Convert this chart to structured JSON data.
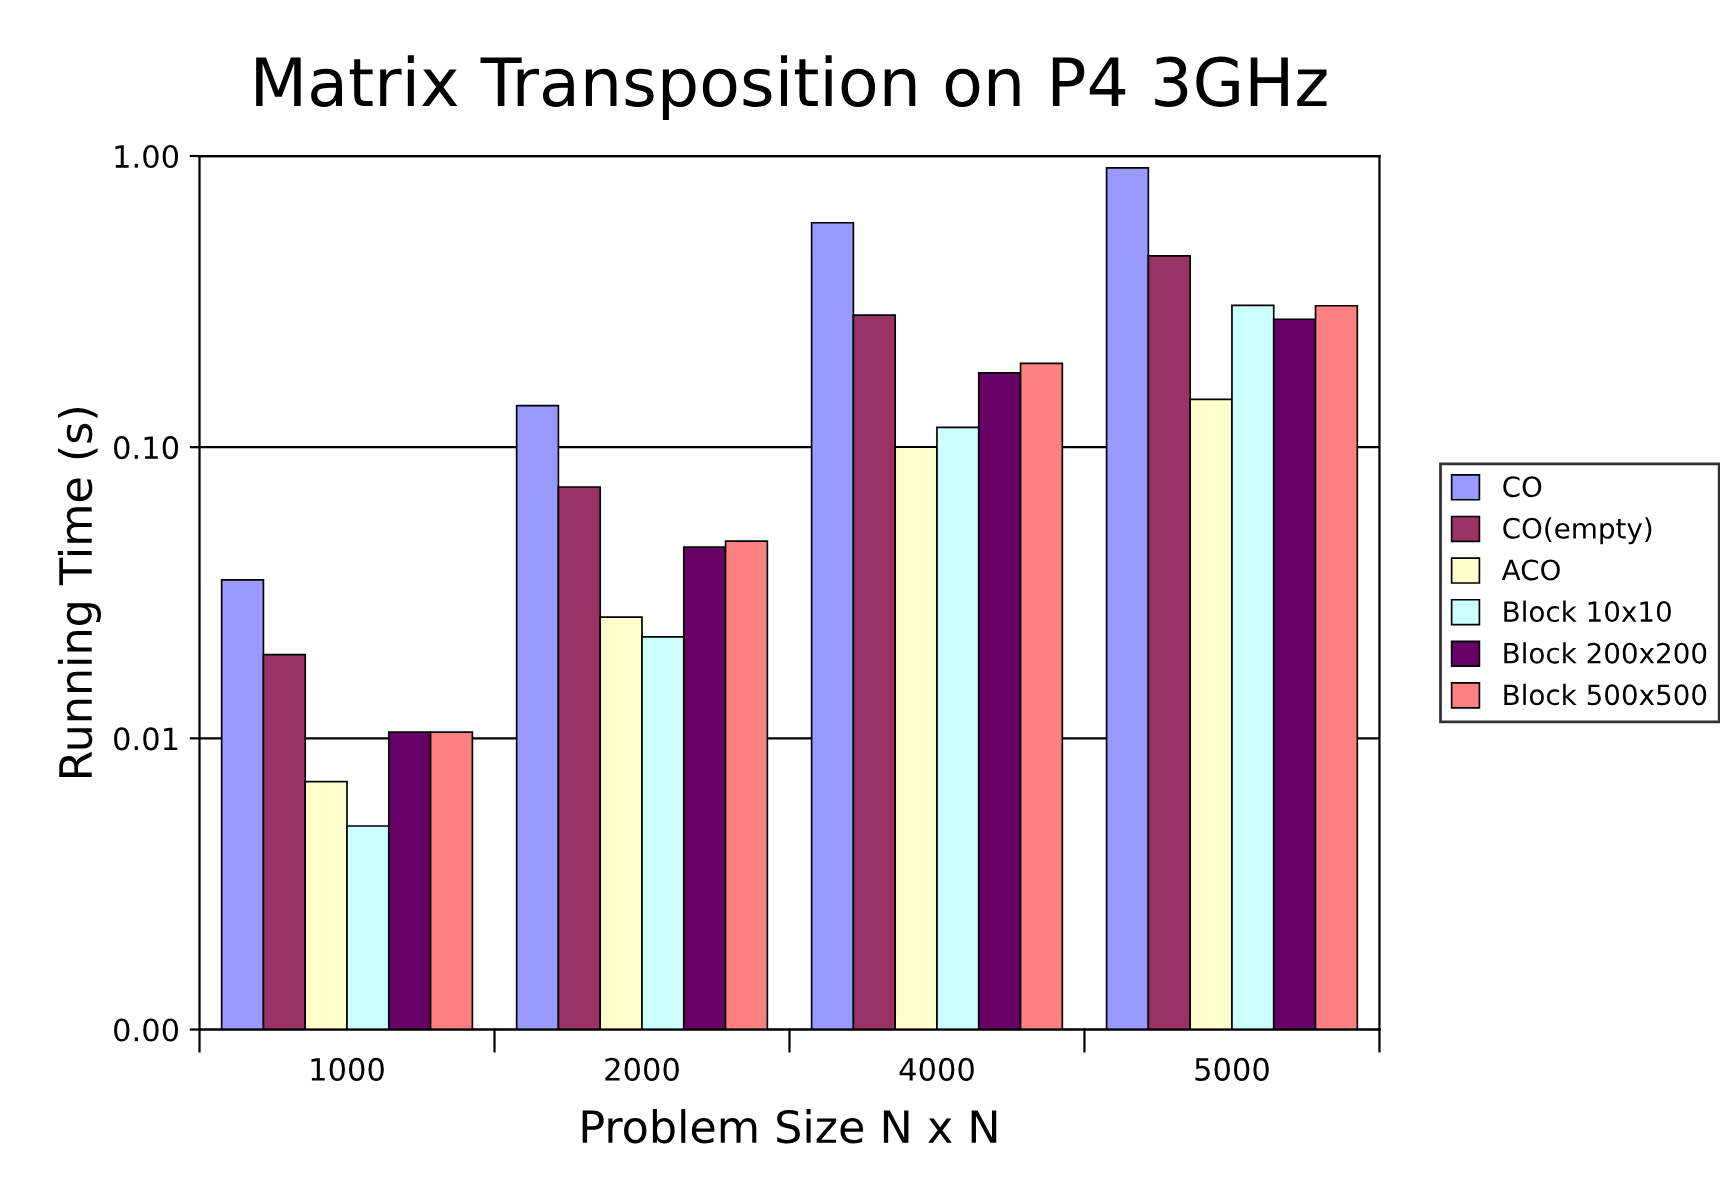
{
  "chart_data": {
    "type": "bar",
    "title": "Matrix Transposition on P4 3GHz",
    "xlabel": "Problem Size N x N",
    "ylabel": "Running Time (s)",
    "categories": [
      "1000",
      "2000",
      "4000",
      "5000"
    ],
    "series": [
      {
        "name": "CO",
        "color": "#9999ff",
        "values": [
          0.035,
          0.139,
          0.59,
          0.91
        ]
      },
      {
        "name": "CO(empty)",
        "color": "#993366",
        "values": [
          0.0194,
          0.073,
          0.284,
          0.454
        ]
      },
      {
        "name": "ACO",
        "color": "#ffffcc",
        "values": [
          0.0071,
          0.0261,
          0.1,
          0.146
        ]
      },
      {
        "name": "Block 10x10",
        "color": "#ccffff",
        "values": [
          0.005,
          0.0223,
          0.117,
          0.307
        ]
      },
      {
        "name": "Block 200x200",
        "color": "#660066",
        "values": [
          0.0105,
          0.0454,
          0.18,
          0.275
        ]
      },
      {
        "name": "Block 500x500",
        "color": "#ff8080",
        "values": [
          0.0105,
          0.0476,
          0.194,
          0.306
        ]
      }
    ],
    "log": "y",
    "ylim": [
      0.001,
      1
    ],
    "yticks": [
      {
        "value": 0.001,
        "label": "0.00"
      },
      {
        "value": 0.01,
        "label": "0.01"
      },
      {
        "value": 0.1,
        "label": "0.10"
      },
      {
        "value": 1,
        "label": "1.00"
      }
    ],
    "grid": "y",
    "legend": "right"
  }
}
